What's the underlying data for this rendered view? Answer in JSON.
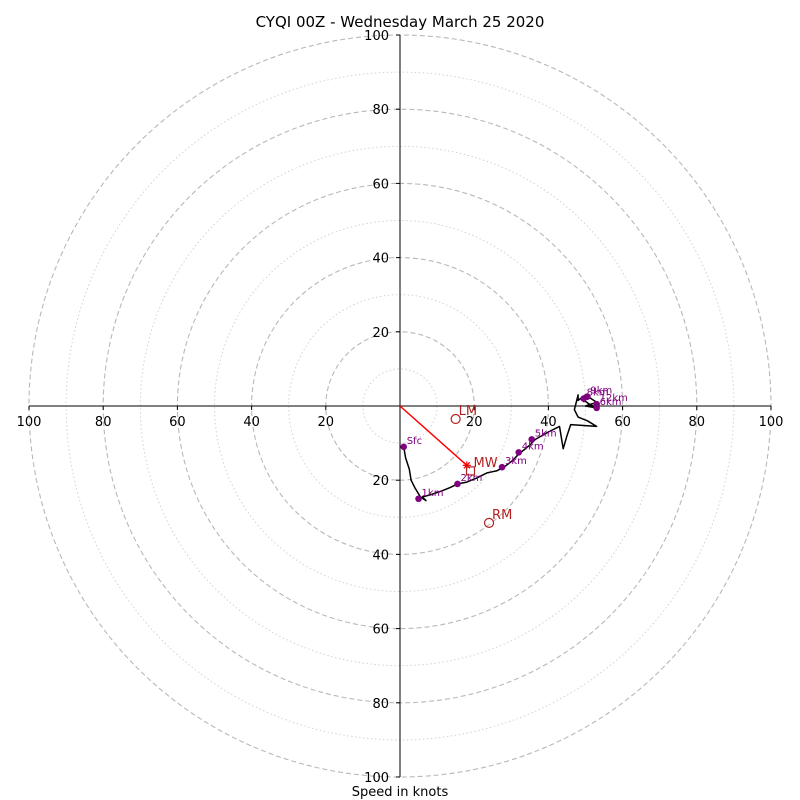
{
  "chart_data": {
    "type": "scatter",
    "subtype": "hodograph",
    "title": "CYQI 00Z - Wednesday March 25 2020",
    "xlabel": "Speed in knots",
    "range": [
      -100,
      100
    ],
    "ring_major": [
      20,
      40,
      60,
      80,
      100
    ],
    "ring_minor": [
      10,
      30,
      50,
      70,
      90
    ],
    "ticks": {
      "x": [
        {
          "value": -100,
          "label": "100"
        },
        {
          "value": -80,
          "label": "80"
        },
        {
          "value": -60,
          "label": "60"
        },
        {
          "value": -40,
          "label": "40"
        },
        {
          "value": -20,
          "label": "20"
        },
        {
          "value": 20,
          "label": "20"
        },
        {
          "value": 40,
          "label": "40"
        },
        {
          "value": 60,
          "label": "60"
        },
        {
          "value": 80,
          "label": "80"
        },
        {
          "value": 100,
          "label": "100"
        }
      ],
      "y": [
        {
          "value": 100,
          "label": "100"
        },
        {
          "value": 80,
          "label": "80"
        },
        {
          "value": 60,
          "label": "60"
        },
        {
          "value": 40,
          "label": "40"
        },
        {
          "value": 20,
          "label": "20"
        },
        {
          "value": -20,
          "label": "20"
        },
        {
          "value": -40,
          "label": "40"
        },
        {
          "value": -60,
          "label": "60"
        },
        {
          "value": -80,
          "label": "80"
        },
        {
          "value": -100,
          "label": "100"
        }
      ]
    },
    "profile": [
      [
        1,
        -11
      ],
      [
        1.5,
        -14
      ],
      [
        2.5,
        -17
      ],
      [
        3,
        -20
      ],
      [
        4,
        -22
      ],
      [
        5.5,
        -24.5
      ],
      [
        7,
        -25.5
      ],
      [
        6,
        -24.5
      ],
      [
        8,
        -24
      ],
      [
        11,
        -23
      ],
      [
        13.5,
        -22
      ],
      [
        15.5,
        -21
      ],
      [
        18,
        -20.5
      ],
      [
        20.5,
        -19.5
      ],
      [
        23.5,
        -18
      ],
      [
        26,
        -17.5
      ],
      [
        28,
        -16.5
      ],
      [
        30,
        -15
      ],
      [
        32,
        -13
      ],
      [
        35,
        -10.5
      ],
      [
        36.5,
        -9
      ],
      [
        40,
        -7
      ],
      [
        43,
        -5.5
      ],
      [
        44,
        -11.5
      ],
      [
        45,
        -8
      ],
      [
        46,
        -5
      ],
      [
        53,
        -5.5
      ],
      [
        50.5,
        -4
      ],
      [
        48,
        -3
      ],
      [
        47,
        -1
      ],
      [
        48,
        3
      ],
      [
        48,
        1.5
      ],
      [
        50,
        3
      ],
      [
        53,
        1
      ],
      [
        50,
        0
      ],
      [
        53,
        -0.5
      ],
      [
        51,
        0.5
      ],
      [
        49,
        2
      ],
      [
        50,
        2.5
      ],
      [
        49.5,
        1
      ]
    ],
    "height_markers": [
      {
        "u": 1,
        "v": -11,
        "label": "Sfc"
      },
      {
        "u": 5,
        "v": -25,
        "label": "1km"
      },
      {
        "u": 15.5,
        "v": -21,
        "label": "2km"
      },
      {
        "u": 27.5,
        "v": -16.5,
        "label": "3km"
      },
      {
        "u": 32,
        "v": -12.5,
        "label": "4km"
      },
      {
        "u": 35.5,
        "v": -9,
        "label": "5km"
      },
      {
        "u": 53,
        "v": -0.5,
        "label": "6km"
      },
      {
        "u": 53,
        "v": 0.5,
        "label": "12km"
      },
      {
        "u": 50.5,
        "v": 2.5,
        "label": "9km"
      },
      {
        "u": 49.5,
        "v": 2,
        "label": "8km"
      }
    ],
    "storm_motion": [
      {
        "label": "LM",
        "u": 15,
        "v": -3.5,
        "marker": "circle"
      },
      {
        "label": "MW",
        "u": 19,
        "v": -17.5,
        "marker": "square"
      },
      {
        "label": "RM",
        "u": 24,
        "v": -31.5,
        "marker": "circle"
      }
    ],
    "motion_vector": {
      "u": 18,
      "v": -16
    },
    "colors": {
      "profile": "#000000",
      "markers": "#800080",
      "storm": "#b22222",
      "vector": "#ff0000",
      "grid": "#b8b8b8"
    }
  }
}
